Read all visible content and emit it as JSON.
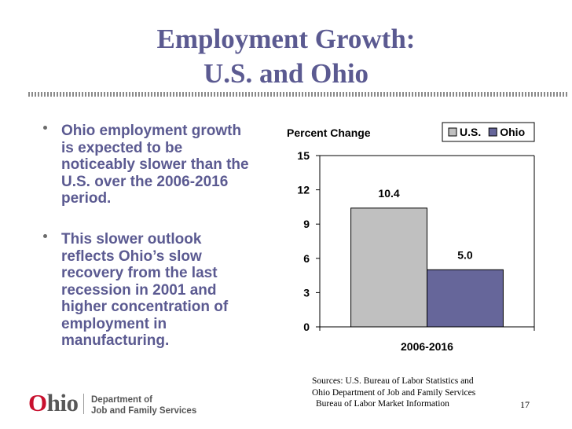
{
  "slide": {
    "title_line1": "Employment Growth:",
    "title_line2": "U.S. and Ohio",
    "bullets": [
      "Ohio employment growth is expected to be noticeably slower than the U.S. over the 2006-2016 period.",
      "This slower outlook reflects Ohio’s slow recovery from the last recession in 2001 and higher concentration of employment in manufacturing."
    ],
    "sources": [
      "Sources: U.S. Bureau of Labor Statistics and",
      "Ohio Department of Job and Family Services",
      "Bureau of Labor Market Information"
    ],
    "page_number": "17"
  },
  "logo": {
    "wordmark_o": "O",
    "wordmark_rest": "hio",
    "department_line1": "Department of",
    "department_line2": "Job and Family Services",
    "brand_color": "#c8102e"
  },
  "chart_data": {
    "type": "bar",
    "ylabel": "Percent Change",
    "categories": [
      "2006-2016"
    ],
    "series": [
      {
        "name": "U.S.",
        "values": [
          10.4
        ],
        "color": "#c0c0c0"
      },
      {
        "name": "Ohio",
        "values": [
          5.0
        ],
        "color": "#66669a"
      }
    ],
    "data_labels": [
      "10.4",
      "5.0"
    ],
    "ylim": [
      0,
      15
    ],
    "yticks": [
      0,
      3,
      6,
      9,
      12,
      15
    ],
    "grid": false,
    "legend": "top-right"
  }
}
